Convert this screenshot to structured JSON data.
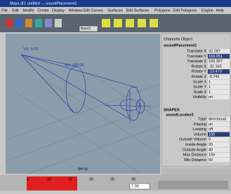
{
  "window": {
    "title": "Maya 3D: untitled --- soundPlacement2"
  },
  "menu": {
    "items": [
      "File",
      "Edit",
      "Modify",
      "Create",
      "Display",
      "Window",
      "Edit Curves",
      "Surfaces",
      "Edit Surfaces",
      "Polygons",
      "Edit Polygons",
      "Engine",
      "Help"
    ]
  },
  "toolbar": {
    "dropdown": "RenG"
  },
  "viewport": {
    "labels": [
      "Vol: 0.00",
      "Vol: 100.00"
    ],
    "camera": "persp"
  },
  "channel_box": {
    "tabs": [
      "Channels",
      "Object"
    ],
    "node": "soundPlacement2",
    "attributes": [
      {
        "name": "Translate X",
        "value": "32.287"
      },
      {
        "name": "Translate Y",
        "value": "169.951"
      },
      {
        "name": "Translate Z",
        "value": "103.357"
      },
      {
        "name": "Rotate X",
        "value": "-32.165"
      },
      {
        "name": "Rotate Y",
        "value": "-13.473"
      },
      {
        "name": "Rotate Z",
        "value": "-0.742"
      },
      {
        "name": "Scale X",
        "value": "1"
      },
      {
        "name": "Scale Y",
        "value": "1"
      },
      {
        "name": "Scale Z",
        "value": "1"
      },
      {
        "name": "Visibility",
        "value": "on"
      }
    ],
    "shapes_header": "SHAPES",
    "shape_node": "soundLocator2",
    "shape_attributes": [
      {
        "name": "Type",
        "value": "directional"
      },
      {
        "name": "Playing",
        "value": "on"
      },
      {
        "name": "Looping",
        "value": "off"
      },
      {
        "name": "Volume",
        "value": "100"
      },
      {
        "name": "Outside Volume",
        "value": "0"
      },
      {
        "name": "Inside Angle",
        "value": "20"
      },
      {
        "name": "Outside Angle",
        "value": "40"
      },
      {
        "name": "Max Distance",
        "value": "150"
      },
      {
        "name": "Min Distance",
        "value": "50"
      }
    ]
  },
  "timeline": {
    "ticks": [
      "5",
      "10",
      "15",
      "20",
      "25",
      "30"
    ],
    "current": "7.00"
  }
}
